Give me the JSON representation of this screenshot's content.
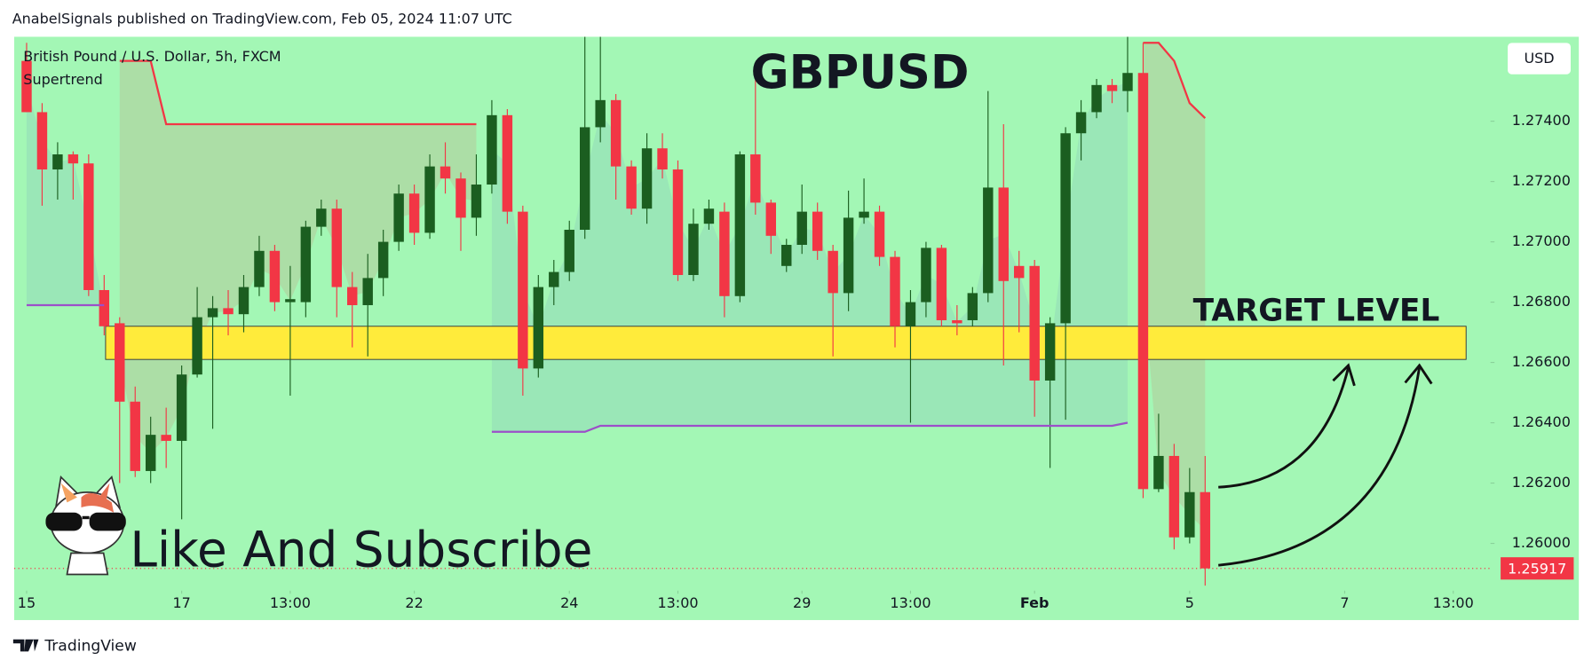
{
  "page": {
    "header": "AnabelSignals published on TradingView.com, Feb 05, 2024 11:07 UTC",
    "footer": "TradingView"
  },
  "chart_data": {
    "type": "candlestick",
    "title": "GBPUSD",
    "symbol": "British Pound / U.S. Dollar, 5h, FXCM",
    "currency": "USD",
    "annotation": "Like And Subscribe",
    "background": "#a3f7b5",
    "up_color": "#1b5e20",
    "down_color": "#f23645",
    "candles": {
      "open": [
        1.276,
        1.2743,
        1.2724,
        1.2729,
        1.2726,
        1.2684,
        1.2673,
        1.2647,
        1.2624,
        1.2636,
        1.2634,
        1.2656,
        1.2675,
        1.2678,
        1.2676,
        1.2685,
        1.2697,
        1.268,
        1.268,
        1.2705,
        1.2711,
        1.2685,
        1.2679,
        1.2688,
        1.27,
        1.2716,
        1.2703,
        1.2725,
        1.2721,
        1.2708,
        1.2719,
        1.2742,
        1.271,
        1.2658,
        1.2685,
        1.269,
        1.2704,
        1.2738,
        1.2747,
        1.2725,
        1.2711,
        1.2731,
        1.2724,
        1.2689,
        1.2706,
        1.271,
        1.2682,
        1.2729,
        1.2713,
        1.2692,
        1.2699,
        1.271,
        1.2697,
        1.2683,
        1.2708,
        1.271,
        1.2695,
        1.2672,
        1.268,
        1.2698,
        1.2674,
        1.2674,
        1.2683,
        1.2718,
        1.2692,
        1.2692,
        1.2654,
        1.2673,
        1.2736,
        1.2743,
        1.2752,
        1.275,
        1.2756,
        1.2618,
        1.2629,
        1.2602,
        1.2617
      ],
      "high": [
        1.2766,
        1.2746,
        1.2733,
        1.273,
        1.2729,
        1.2689,
        1.2675,
        1.2652,
        1.2642,
        1.2645,
        1.2659,
        1.2685,
        1.2682,
        1.2684,
        1.2689,
        1.2702,
        1.2699,
        1.2692,
        1.2707,
        1.2714,
        1.2714,
        1.269,
        1.2696,
        1.2704,
        1.2719,
        1.2719,
        1.2729,
        1.2733,
        1.2723,
        1.2729,
        1.2747,
        1.2744,
        1.2712,
        1.2689,
        1.2694,
        1.2707,
        1.2768,
        1.2768,
        1.2749,
        1.2727,
        1.2736,
        1.2736,
        1.2727,
        1.2711,
        1.2714,
        1.2713,
        1.273,
        1.2758,
        1.2714,
        1.2701,
        1.2719,
        1.2713,
        1.2699,
        1.2717,
        1.2721,
        1.2712,
        1.2697,
        1.2684,
        1.27,
        1.2699,
        1.2679,
        1.2685,
        1.275,
        1.2739,
        1.2697,
        1.2694,
        1.2675,
        1.2738,
        1.2747,
        1.2754,
        1.2754,
        1.2768,
        1.2766,
        1.2643,
        1.2633,
        1.2625,
        1.2629
      ],
      "low": [
        1.2743,
        1.2712,
        1.2714,
        1.2714,
        1.2682,
        1.2669,
        1.262,
        1.2622,
        1.262,
        1.2625,
        1.2608,
        1.2655,
        1.2638,
        1.2669,
        1.267,
        1.2682,
        1.2677,
        1.2649,
        1.2675,
        1.2702,
        1.2675,
        1.2665,
        1.2662,
        1.2682,
        1.2697,
        1.2699,
        1.2701,
        1.2716,
        1.2697,
        1.2702,
        1.2716,
        1.2706,
        1.2649,
        1.2655,
        1.2679,
        1.2687,
        1.2701,
        1.2733,
        1.2714,
        1.2709,
        1.2706,
        1.2721,
        1.2687,
        1.2687,
        1.2704,
        1.2675,
        1.268,
        1.2709,
        1.2696,
        1.269,
        1.2696,
        1.2694,
        1.2662,
        1.2677,
        1.2706,
        1.2692,
        1.2665,
        1.264,
        1.2675,
        1.2672,
        1.2669,
        1.2672,
        1.268,
        1.2659,
        1.267,
        1.2642,
        1.2625,
        1.2641,
        1.2727,
        1.2741,
        1.2746,
        1.2743,
        1.2615,
        1.2617,
        1.2598,
        1.26,
        1.2586
      ],
      "close": [
        1.2743,
        1.2724,
        1.2729,
        1.2726,
        1.2684,
        1.2672,
        1.2647,
        1.2624,
        1.2636,
        1.2634,
        1.2656,
        1.2675,
        1.2678,
        1.2676,
        1.2685,
        1.2697,
        1.268,
        1.2681,
        1.2705,
        1.2711,
        1.2685,
        1.2679,
        1.2688,
        1.27,
        1.2716,
        1.2703,
        1.2725,
        1.2721,
        1.2708,
        1.2719,
        1.2742,
        1.271,
        1.2658,
        1.2685,
        1.269,
        1.2704,
        1.2738,
        1.2747,
        1.2725,
        1.2711,
        1.2731,
        1.2724,
        1.2689,
        1.2706,
        1.2711,
        1.2682,
        1.2729,
        1.2713,
        1.2702,
        1.2699,
        1.271,
        1.2697,
        1.2683,
        1.2708,
        1.271,
        1.2695,
        1.2672,
        1.268,
        1.2698,
        1.2674,
        1.2673,
        1.2683,
        1.2718,
        1.2687,
        1.2688,
        1.2654,
        1.2673,
        1.2736,
        1.2743,
        1.2752,
        1.275,
        1.2756,
        1.2618,
        1.2629,
        1.2602,
        1.2617,
        1.25917
      ]
    },
    "indicator": {
      "name": "Supertrend",
      "upper_color": "#f23645",
      "lower_color": "#9c4fc9",
      "upper": [
        null,
        null,
        null,
        null,
        null,
        null,
        1.276,
        1.276,
        1.276,
        1.2739,
        1.2739,
        1.2739,
        1.2739,
        1.2739,
        1.2739,
        1.2739,
        1.2739,
        1.2739,
        1.2739,
        1.2739,
        1.2739,
        1.2739,
        1.2739,
        1.2739,
        1.2739,
        1.2739,
        1.2739,
        1.2739,
        1.2739,
        1.2739,
        null,
        null,
        null,
        null,
        null,
        null,
        null,
        null,
        null,
        null,
        null,
        null,
        null,
        null,
        null,
        null,
        null,
        null,
        null,
        null,
        null,
        null,
        null,
        null,
        null,
        null,
        null,
        null,
        null,
        null,
        null,
        null,
        null,
        null,
        null,
        null,
        null,
        null,
        null,
        null,
        null,
        null,
        1.2766,
        1.2766,
        1.276,
        1.2746,
        1.2741
      ],
      "lower": [
        1.2679,
        1.2679,
        1.2679,
        1.2679,
        1.2679,
        1.2679,
        null,
        null,
        null,
        null,
        null,
        null,
        null,
        null,
        null,
        null,
        null,
        null,
        null,
        null,
        null,
        null,
        null,
        null,
        null,
        null,
        null,
        null,
        null,
        null,
        1.2637,
        1.2637,
        1.2637,
        1.2637,
        1.2637,
        1.2637,
        1.2637,
        1.2639,
        1.2639,
        1.2639,
        1.2639,
        1.2639,
        1.2639,
        1.2639,
        1.2639,
        1.2639,
        1.2639,
        1.2639,
        1.2639,
        1.2639,
        1.2639,
        1.2639,
        1.2639,
        1.2639,
        1.2639,
        1.2639,
        1.2639,
        1.2639,
        1.2639,
        1.2639,
        1.2639,
        1.2639,
        1.2639,
        1.2639,
        1.2639,
        1.2639,
        1.2639,
        1.2639,
        1.2639,
        1.2639,
        1.2639,
        1.264,
        null,
        null,
        null,
        null,
        null
      ]
    },
    "zone": {
      "label": "TARGET LEVEL",
      "from": 1.2661,
      "to": 1.2672,
      "color": "#ffeb3b"
    },
    "last_price": 1.25917,
    "ylim": [
      1.2585,
      1.2768
    ],
    "yticks": [
      {
        "value": 1.26,
        "label": "1.26000"
      },
      {
        "value": 1.262,
        "label": "1.26200"
      },
      {
        "value": 1.264,
        "label": "1.26400"
      },
      {
        "value": 1.266,
        "label": "1.26600"
      },
      {
        "value": 1.268,
        "label": "1.26800"
      },
      {
        "value": 1.27,
        "label": "1.27000"
      },
      {
        "value": 1.272,
        "label": "1.27200"
      },
      {
        "value": 1.274,
        "label": "1.27400"
      }
    ],
    "xlim": [
      -0.8,
      94.4
    ],
    "xticks": [
      {
        "value": 0,
        "label": "15"
      },
      {
        "value": 10,
        "label": "17"
      },
      {
        "value": 17,
        "label": "13:00"
      },
      {
        "value": 25,
        "label": "22"
      },
      {
        "value": 35,
        "label": "24"
      },
      {
        "value": 42,
        "label": "13:00"
      },
      {
        "value": 50,
        "label": "29"
      },
      {
        "value": 57,
        "label": "13:00"
      },
      {
        "value": 65,
        "label": "Feb"
      },
      {
        "value": 75,
        "label": "5"
      },
      {
        "value": 85,
        "label": "7"
      },
      {
        "value": 92,
        "label": "13:00"
      }
    ]
  }
}
